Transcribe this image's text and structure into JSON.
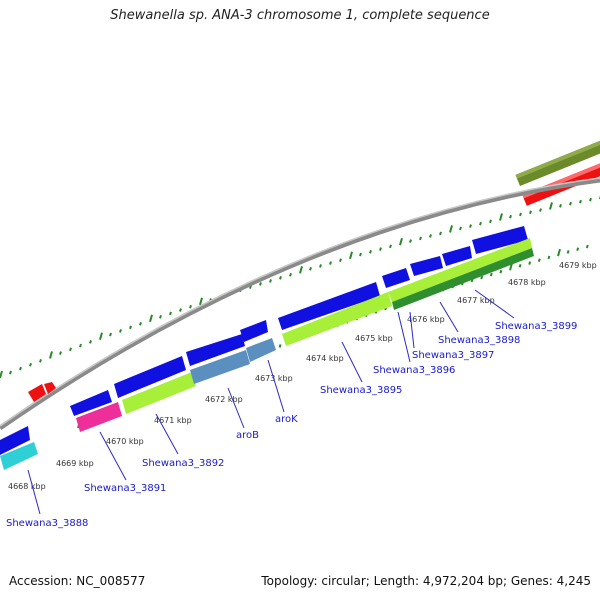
{
  "title": "Shewanella sp. ANA-3 chromosome 1, complete sequence",
  "footer": {
    "accession": "Accession: NC_008577",
    "summary": "Topology: circular; Length: 4,972,204 bp; Genes: 4,245"
  },
  "colors": {
    "forward_cds": "#1010e0",
    "lime": "#a8ef3a",
    "green": "#2f8f2f",
    "olive": "#6b8b2a",
    "red": "#ee1111",
    "magenta": "#ee2f99",
    "cyan": "#2fcfd6",
    "steelblue": "#5b8fc0",
    "backbone": "#8a8a8a",
    "dots": "#2a8a2a"
  },
  "ticks": [
    "4668 kbp",
    "4669 kbp",
    "4670 kbp",
    "4671 kbp",
    "4672 kbp",
    "4673 kbp",
    "4674 kbp",
    "4675 kbp",
    "4676 kbp",
    "4677 kbp",
    "4678 kbp",
    "4679 kbp"
  ],
  "genes": [
    "Shewana3_3888",
    "Shewana3_3891",
    "Shewana3_3892",
    "aroB",
    "aroK",
    "Shewana3_3895",
    "Shewana3_3896",
    "Shewana3_3897",
    "Shewana3_3898",
    "Shewana3_3899"
  ]
}
